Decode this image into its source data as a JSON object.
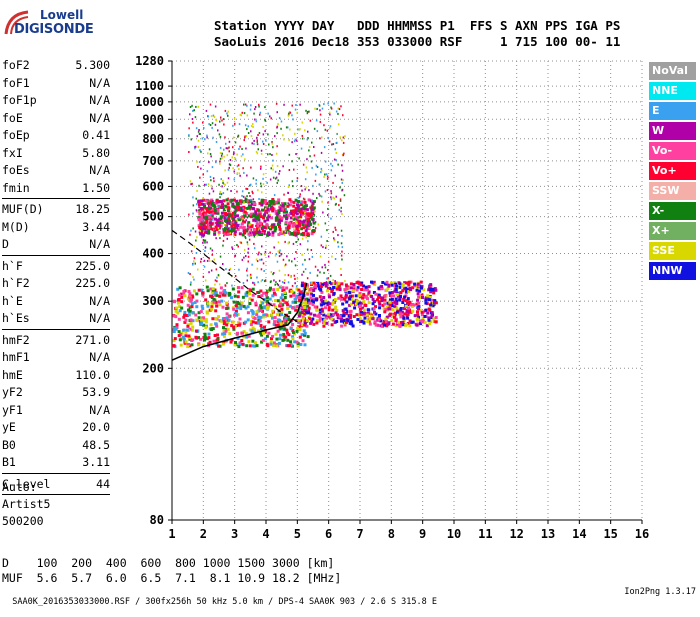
{
  "logo": {
    "line1": "Lowell",
    "line2": "DIGISONDE"
  },
  "header": {
    "row1": "Station YYYY DAY   DDD HHMMSS P1  FFS S AXN PPS IGA PS",
    "row2": "SaoLuis 2016 Dec18 353 033000 RSF     1 715 100 00- 11"
  },
  "params": [
    {
      "group": [
        {
          "k": "foF2",
          "v": "5.300"
        },
        {
          "k": "foF1",
          "v": "N/A"
        },
        {
          "k": "foF1p",
          "v": "N/A"
        },
        {
          "k": "foE",
          "v": "N/A"
        },
        {
          "k": "foEp",
          "v": "0.41"
        },
        {
          "k": "fxI",
          "v": "5.80"
        },
        {
          "k": "foEs",
          "v": "N/A"
        },
        {
          "k": "fmin",
          "v": "1.50"
        }
      ]
    },
    {
      "group": [
        {
          "k": "MUF(D)",
          "v": "18.25"
        },
        {
          "k": "M(D)",
          "v": "3.44"
        },
        {
          "k": "D",
          "v": "N/A"
        }
      ]
    },
    {
      "group": [
        {
          "k": "h`F",
          "v": "225.0"
        },
        {
          "k": "h`F2",
          "v": "225.0"
        },
        {
          "k": "h`E",
          "v": "N/A"
        },
        {
          "k": "h`Es",
          "v": "N/A"
        }
      ]
    },
    {
      "group": [
        {
          "k": "hmF2",
          "v": "271.0"
        },
        {
          "k": "hmF1",
          "v": "N/A"
        },
        {
          "k": "hmE",
          "v": "110.0"
        },
        {
          "k": "yF2",
          "v": "53.9"
        },
        {
          "k": "yF1",
          "v": "N/A"
        },
        {
          "k": "yE",
          "v": "20.0"
        },
        {
          "k": "B0",
          "v": "48.5"
        },
        {
          "k": "B1",
          "v": "3.11"
        }
      ]
    },
    {
      "group": [
        {
          "k": "C-level",
          "v": "44"
        }
      ]
    }
  ],
  "auto": {
    "line1": "Auto:",
    "line2": "Artist5",
    "line3": "500200"
  },
  "distance_table": {
    "row1": "D    100  200  400  600  800 1000 1500 3000 [km]",
    "row2": "MUF  5.6  5.7  6.0  6.5  7.1  8.1 10.9 18.2 [MHz]"
  },
  "footer": {
    "left": "SAA0K_2016353033000.RSF / 300fx256h 50 kHz 5.0 km / DPS-4 SAA0K 903 / 2.6 S 315.8 E",
    "right": "Ion2Png 1.3.17"
  },
  "legend": [
    {
      "label": "NoVal",
      "color": "#a0a0a0"
    },
    {
      "label": "NNE",
      "color": "#00e8f0"
    },
    {
      "label": "E",
      "color": "#3aa0f0"
    },
    {
      "label": "W",
      "color": "#b000a8"
    },
    {
      "label": "Vo-",
      "color": "#ff40a0"
    },
    {
      "label": "Vo+",
      "color": "#ff0030"
    },
    {
      "label": "SSW",
      "color": "#f4b0a8"
    },
    {
      "label": "X-",
      "color": "#108010"
    },
    {
      "label": "X+",
      "color": "#70b060"
    },
    {
      "label": "SSE",
      "color": "#d8d800"
    },
    {
      "label": "NNW",
      "color": "#1010e0"
    }
  ],
  "chart_data": {
    "type": "scatter",
    "x_ticks": [
      1,
      2,
      3,
      4,
      5,
      6,
      7,
      8,
      9,
      10,
      11,
      12,
      13,
      14,
      15,
      16
    ],
    "y_ticks": [
      80,
      200,
      300,
      400,
      500,
      600,
      700,
      800,
      900,
      1000,
      1100,
      1280
    ],
    "y_scale": "log",
    "xlim": [
      1,
      16
    ],
    "ylim": [
      80,
      1280
    ],
    "grid": true,
    "clusters": [
      {
        "name": "F2 O-trace",
        "x_range": [
          1.0,
          5.3
        ],
        "y_range": [
          230,
          330
        ],
        "colors": [
          "#ff0030",
          "#ff40a0",
          "#3aa0f0",
          "#108010",
          "#d8d800"
        ]
      },
      {
        "name": "Low-frequency trace",
        "x_range": [
          5.0,
          9.4
        ],
        "y_range": [
          260,
          340
        ],
        "colors": [
          "#ff0030",
          "#ff40a0",
          "#d8d800",
          "#b000a8",
          "#1010e0"
        ]
      },
      {
        "name": "2nd hop",
        "x_range": [
          1.8,
          5.5
        ],
        "y_range": [
          450,
          560
        ],
        "colors": [
          "#ff0030",
          "#ff40a0",
          "#b000a8",
          "#108010"
        ]
      },
      {
        "name": "Scattered",
        "x_range": [
          1.5,
          6.5
        ],
        "y_range": [
          330,
          1000
        ],
        "colors": [
          "#b000a8",
          "#108010",
          "#ff0030",
          "#3aa0f0",
          "#d8d800"
        ]
      }
    ],
    "profile_curve": [
      [
        1.0,
        210
      ],
      [
        2.0,
        228
      ],
      [
        3.0,
        240
      ],
      [
        4.0,
        252
      ],
      [
        4.7,
        260
      ],
      [
        5.0,
        280
      ],
      [
        5.2,
        310
      ],
      [
        5.3,
        335
      ]
    ],
    "dashed_curve": [
      [
        1.0,
        460
      ],
      [
        1.5,
        430
      ],
      [
        2.0,
        400
      ],
      [
        2.5,
        370
      ],
      [
        3.0,
        345
      ],
      [
        3.5,
        320
      ],
      [
        4.0,
        300
      ],
      [
        4.5,
        280
      ],
      [
        5.0,
        265
      ]
    ]
  }
}
